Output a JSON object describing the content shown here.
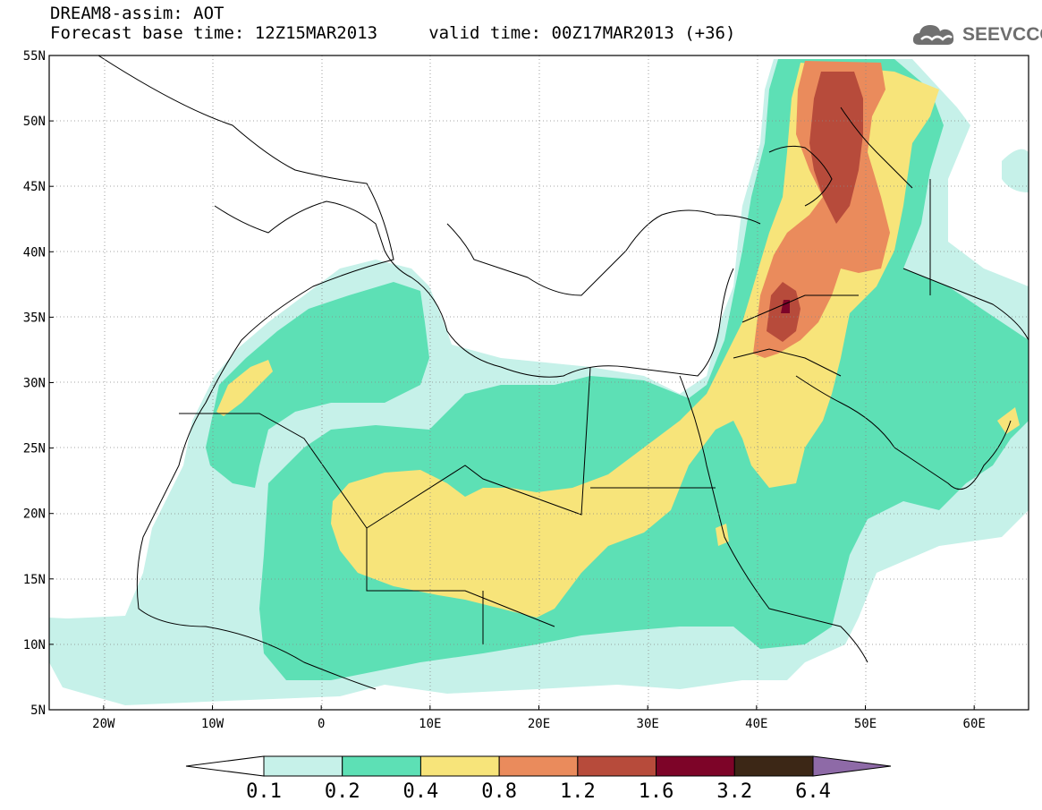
{
  "header": {
    "title_line1": "DREAM8-assim: AOT",
    "title_line2": "Forecast base time: 12Z15MAR2013     valid time: 00Z17MAR2013 (+36)"
  },
  "logo": {
    "text": "SEEVCCC",
    "icon": "cloud-icon",
    "color": "#6e6e6e"
  },
  "map": {
    "lat_labels": [
      "55N",
      "50N",
      "45N",
      "40N",
      "35N",
      "30N",
      "25N",
      "20N",
      "15N",
      "10N",
      "5N"
    ],
    "lon_labels": [
      "20W",
      "10W",
      "0",
      "10E",
      "20E",
      "30E",
      "40E",
      "50E",
      "60E"
    ],
    "lat_range": [
      5,
      55
    ],
    "lon_range": [
      -25,
      65
    ],
    "grid": "dotted",
    "field": "Aerosol optical thickness (dust)",
    "levels": [
      0.1,
      0.2,
      0.4,
      0.8,
      1.2,
      1.6,
      3.2,
      6.4
    ]
  },
  "colorbar": {
    "labels": [
      "0.1",
      "0.2",
      "0.4",
      "0.8",
      "1.2",
      "1.6",
      "3.2",
      "6.4"
    ],
    "colors": [
      "#ffffff",
      "#c6f1e9",
      "#5de0b5",
      "#f7e47a",
      "#ea8b5c",
      "#b74b3b",
      "#7d0428",
      "#3c2716",
      "#8e6aa7"
    ]
  }
}
